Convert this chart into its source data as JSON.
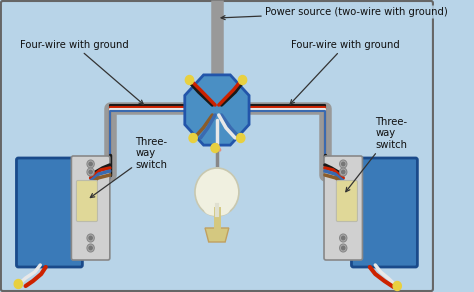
{
  "background_color": "#b8d4e8",
  "border_color": "#666666",
  "labels": {
    "power_source": "Power source (two-wire with ground)",
    "four_wire_left": "Four-wire with ground",
    "four_wire_right": "Four-wire with ground",
    "three_way_left": "Three-\nway\nswitch",
    "three_way_right": "Three-\nway\nswitch"
  },
  "junction_box_color": "#4a8fc4",
  "junction_box_edge": "#2255aa",
  "switch_box_color": "#3a7ab8",
  "switch_box_edge": "#1a4a8a",
  "switch_body_color": "#d0d0d0",
  "switch_toggle_color": "#e0d898",
  "wire_gray": "#9a9a9a",
  "wire_red": "#cc2200",
  "wire_black": "#1a1a1a",
  "wire_white": "#e8e8e8",
  "wire_blue": "#3a6ab0",
  "wire_brown": "#8b5c2a",
  "connector_yellow": "#e8d040",
  "bulb_globe": "#f0f0e0",
  "bulb_base": "#d4c880",
  "conduit_color": "#999999"
}
